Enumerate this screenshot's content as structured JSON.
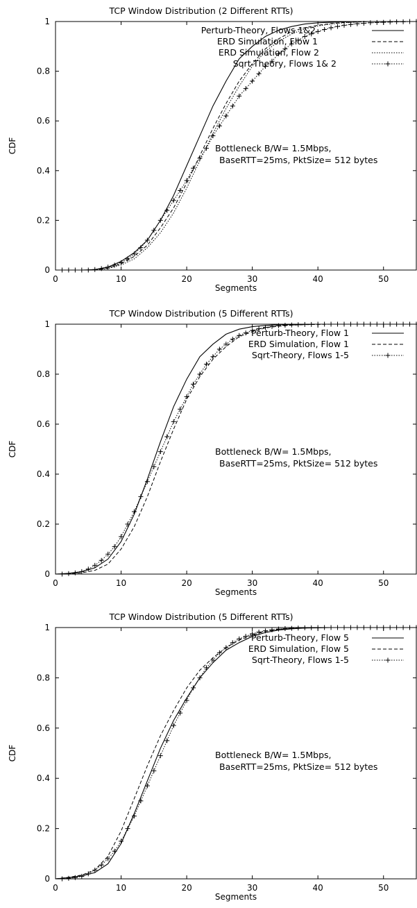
{
  "chart_data": [
    {
      "type": "line",
      "title": "TCP Window Distribution (2 Different RTTs)",
      "xlabel": "Segments",
      "ylabel": "CDF",
      "xlim": [
        0,
        55
      ],
      "ylim": [
        0,
        1
      ],
      "xticks": [
        "0",
        "10",
        "20",
        "30",
        "40",
        "50"
      ],
      "yticks": [
        "0",
        "0.2",
        "0.4",
        "0.6",
        "0.8",
        "1"
      ],
      "legend_position": "top-right",
      "annotation": [
        "Bottleneck B/W= 1.5Mbps,",
        "BaseRTT=25ms, PktSize= 512 bytes"
      ],
      "series": [
        {
          "name": "Perturb-Theory, Flows 1&2",
          "style": "solid",
          "x": [
            0,
            2,
            4,
            6,
            8,
            10,
            12,
            14,
            16,
            18,
            20,
            22,
            24,
            26,
            28,
            30,
            32,
            34,
            36,
            38,
            40,
            42,
            44,
            46,
            48,
            50,
            55
          ],
          "y": [
            0,
            0,
            0,
            0.002,
            0.012,
            0.035,
            0.07,
            0.12,
            0.2,
            0.3,
            0.42,
            0.54,
            0.66,
            0.76,
            0.85,
            0.9,
            0.94,
            0.965,
            0.98,
            0.99,
            0.995,
            0.997,
            0.999,
            1,
            1,
            1,
            1
          ]
        },
        {
          "name": "ERD Simulation, Flow 1",
          "style": "dashed",
          "x": [
            0,
            6,
            8,
            10,
            12,
            14,
            16,
            18,
            20,
            22,
            24,
            26,
            28,
            30,
            32,
            34,
            36,
            38,
            40,
            42,
            44,
            46,
            48,
            50,
            55
          ],
          "y": [
            0,
            0,
            0.008,
            0.025,
            0.055,
            0.1,
            0.17,
            0.25,
            0.35,
            0.46,
            0.57,
            0.67,
            0.76,
            0.83,
            0.89,
            0.93,
            0.96,
            0.975,
            0.985,
            0.992,
            0.996,
            0.998,
            1,
            1,
            1
          ]
        },
        {
          "name": "ERD Simulation, Flow 2",
          "style": "dotted",
          "x": [
            0,
            6,
            8,
            10,
            12,
            14,
            16,
            18,
            20,
            22,
            24,
            26,
            28,
            30,
            32,
            34,
            36,
            38,
            40,
            42,
            44,
            46,
            48,
            50,
            55
          ],
          "y": [
            0,
            0,
            0.006,
            0.02,
            0.045,
            0.09,
            0.15,
            0.23,
            0.33,
            0.44,
            0.55,
            0.65,
            0.74,
            0.82,
            0.88,
            0.92,
            0.95,
            0.97,
            0.982,
            0.99,
            0.995,
            0.998,
            1,
            1,
            1
          ]
        },
        {
          "name": "Sqrt-Theory, Flows 1& 2",
          "style": "dotted-plus",
          "x": [
            1,
            2,
            3,
            4,
            5,
            6,
            7,
            8,
            9,
            10,
            11,
            12,
            13,
            14,
            15,
            16,
            17,
            18,
            19,
            20,
            21,
            22,
            23,
            24,
            25,
            26,
            27,
            28,
            29,
            30,
            31,
            32,
            33,
            34,
            35,
            36,
            37,
            38,
            39,
            40,
            41,
            42,
            43,
            44,
            45,
            46,
            47,
            48,
            49,
            50,
            51,
            52,
            53,
            54,
            55
          ],
          "y": [
            0,
            0,
            0,
            0,
            0,
            0.002,
            0.006,
            0.012,
            0.02,
            0.03,
            0.045,
            0.065,
            0.09,
            0.12,
            0.16,
            0.2,
            0.24,
            0.28,
            0.32,
            0.36,
            0.41,
            0.45,
            0.49,
            0.54,
            0.58,
            0.62,
            0.66,
            0.7,
            0.73,
            0.76,
            0.79,
            0.82,
            0.84,
            0.87,
            0.89,
            0.91,
            0.925,
            0.94,
            0.95,
            0.96,
            0.968,
            0.975,
            0.98,
            0.985,
            0.988,
            0.991,
            0.993,
            0.995,
            0.996,
            0.997,
            0.998,
            0.999,
            0.999,
            1,
            1
          ]
        }
      ]
    },
    {
      "type": "line",
      "title": "TCP Window Distribution (5 Different RTTs)",
      "xlabel": "Segments",
      "ylabel": "CDF",
      "xlim": [
        0,
        55
      ],
      "ylim": [
        0,
        1
      ],
      "xticks": [
        "0",
        "10",
        "20",
        "30",
        "40",
        "50"
      ],
      "yticks": [
        "0",
        "0.2",
        "0.4",
        "0.6",
        "0.8",
        "1"
      ],
      "legend_position": "top-right",
      "annotation": [
        "Bottleneck B/W= 1.5Mbps,",
        "BaseRTT=25ms, PktSize= 512 bytes"
      ],
      "series": [
        {
          "name": "Perturb-Theory, Flow 1",
          "style": "solid",
          "x": [
            0,
            2,
            4,
            6,
            8,
            10,
            12,
            14,
            16,
            18,
            20,
            22,
            24,
            26,
            28,
            30,
            32,
            34,
            36,
            38,
            40,
            55
          ],
          "y": [
            0,
            0.003,
            0.01,
            0.025,
            0.06,
            0.13,
            0.24,
            0.38,
            0.53,
            0.67,
            0.78,
            0.87,
            0.92,
            0.96,
            0.98,
            0.99,
            0.995,
            0.998,
            0.999,
            1,
            1,
            1
          ]
        },
        {
          "name": "ERD Simulation, Flow 1",
          "style": "dashed",
          "x": [
            0,
            2,
            4,
            6,
            8,
            10,
            12,
            14,
            16,
            18,
            20,
            22,
            24,
            26,
            28,
            30,
            32,
            34,
            36,
            38,
            40,
            42,
            55
          ],
          "y": [
            0,
            0.001,
            0.005,
            0.015,
            0.04,
            0.1,
            0.19,
            0.31,
            0.45,
            0.58,
            0.7,
            0.79,
            0.86,
            0.91,
            0.95,
            0.97,
            0.985,
            0.992,
            0.996,
            0.998,
            0.999,
            1,
            1
          ]
        },
        {
          "name": "Sqrt-Theory, Flows 1-5",
          "style": "dotted-plus",
          "x": [
            1,
            2,
            3,
            4,
            5,
            6,
            7,
            8,
            9,
            10,
            11,
            12,
            13,
            14,
            15,
            16,
            17,
            18,
            19,
            20,
            21,
            22,
            23,
            24,
            25,
            26,
            27,
            28,
            29,
            30,
            31,
            32,
            33,
            34,
            35,
            36,
            37,
            38,
            39,
            40,
            41,
            42,
            43,
            44,
            45,
            46,
            47,
            48,
            49,
            50,
            51,
            52,
            53,
            54,
            55
          ],
          "y": [
            0,
            0.002,
            0.005,
            0.01,
            0.02,
            0.035,
            0.055,
            0.08,
            0.11,
            0.15,
            0.2,
            0.25,
            0.31,
            0.37,
            0.43,
            0.49,
            0.55,
            0.61,
            0.66,
            0.71,
            0.76,
            0.8,
            0.84,
            0.87,
            0.9,
            0.92,
            0.94,
            0.955,
            0.965,
            0.975,
            0.982,
            0.987,
            0.991,
            0.994,
            0.996,
            0.997,
            0.998,
            0.999,
            0.999,
            1,
            1,
            1,
            1,
            1,
            1,
            1,
            1,
            1,
            1,
            1,
            1,
            1,
            1,
            1,
            1
          ]
        }
      ]
    },
    {
      "type": "line",
      "title": "TCP Window Distribution (5 Different RTTs)",
      "xlabel": "Segments",
      "ylabel": "CDF",
      "xlim": [
        0,
        55
      ],
      "ylim": [
        0,
        1
      ],
      "xticks": [
        "0",
        "10",
        "20",
        "30",
        "40",
        "50"
      ],
      "yticks": [
        "0",
        "0.2",
        "0.4",
        "0.6",
        "0.8",
        "1"
      ],
      "legend_position": "top-right",
      "annotation": [
        "Bottleneck B/W= 1.5Mbps,",
        "BaseRTT=25ms, PktSize= 512 bytes"
      ],
      "series": [
        {
          "name": "Perturb-Theory, Flow 5",
          "style": "solid",
          "x": [
            0,
            2,
            4,
            6,
            8,
            10,
            12,
            14,
            16,
            18,
            20,
            22,
            24,
            26,
            28,
            30,
            32,
            34,
            36,
            38,
            40,
            42,
            55
          ],
          "y": [
            0,
            0.005,
            0.012,
            0.025,
            0.06,
            0.14,
            0.26,
            0.39,
            0.52,
            0.63,
            0.72,
            0.8,
            0.86,
            0.91,
            0.94,
            0.965,
            0.98,
            0.99,
            0.995,
            0.998,
            0.999,
            1,
            1
          ]
        },
        {
          "name": "ERD Simulation, Flow 5",
          "style": "dashed",
          "x": [
            0,
            2,
            4,
            6,
            8,
            10,
            12,
            14,
            16,
            18,
            20,
            22,
            24,
            26,
            28,
            30,
            32,
            34,
            36,
            38,
            40,
            55
          ],
          "y": [
            0,
            0.006,
            0.015,
            0.035,
            0.09,
            0.19,
            0.32,
            0.45,
            0.57,
            0.67,
            0.76,
            0.83,
            0.88,
            0.92,
            0.95,
            0.97,
            0.985,
            0.992,
            0.996,
            0.998,
            1,
            1
          ]
        },
        {
          "name": "Sqrt-Theory, Flows 1-5",
          "style": "dotted-plus",
          "x": [
            1,
            2,
            3,
            4,
            5,
            6,
            7,
            8,
            9,
            10,
            11,
            12,
            13,
            14,
            15,
            16,
            17,
            18,
            19,
            20,
            21,
            22,
            23,
            24,
            25,
            26,
            27,
            28,
            29,
            30,
            31,
            32,
            33,
            34,
            35,
            36,
            37,
            38,
            39,
            40,
            41,
            42,
            43,
            44,
            45,
            46,
            47,
            48,
            49,
            50,
            51,
            52,
            53,
            54,
            55
          ],
          "y": [
            0,
            0.002,
            0.005,
            0.01,
            0.02,
            0.035,
            0.055,
            0.08,
            0.11,
            0.15,
            0.2,
            0.25,
            0.31,
            0.37,
            0.43,
            0.49,
            0.55,
            0.61,
            0.66,
            0.71,
            0.76,
            0.8,
            0.84,
            0.87,
            0.9,
            0.92,
            0.94,
            0.955,
            0.965,
            0.975,
            0.982,
            0.987,
            0.991,
            0.994,
            0.996,
            0.997,
            0.998,
            0.999,
            0.999,
            1,
            1,
            1,
            1,
            1,
            1,
            1,
            1,
            1,
            1,
            1,
            1,
            1,
            1,
            1,
            1
          ]
        }
      ]
    }
  ]
}
